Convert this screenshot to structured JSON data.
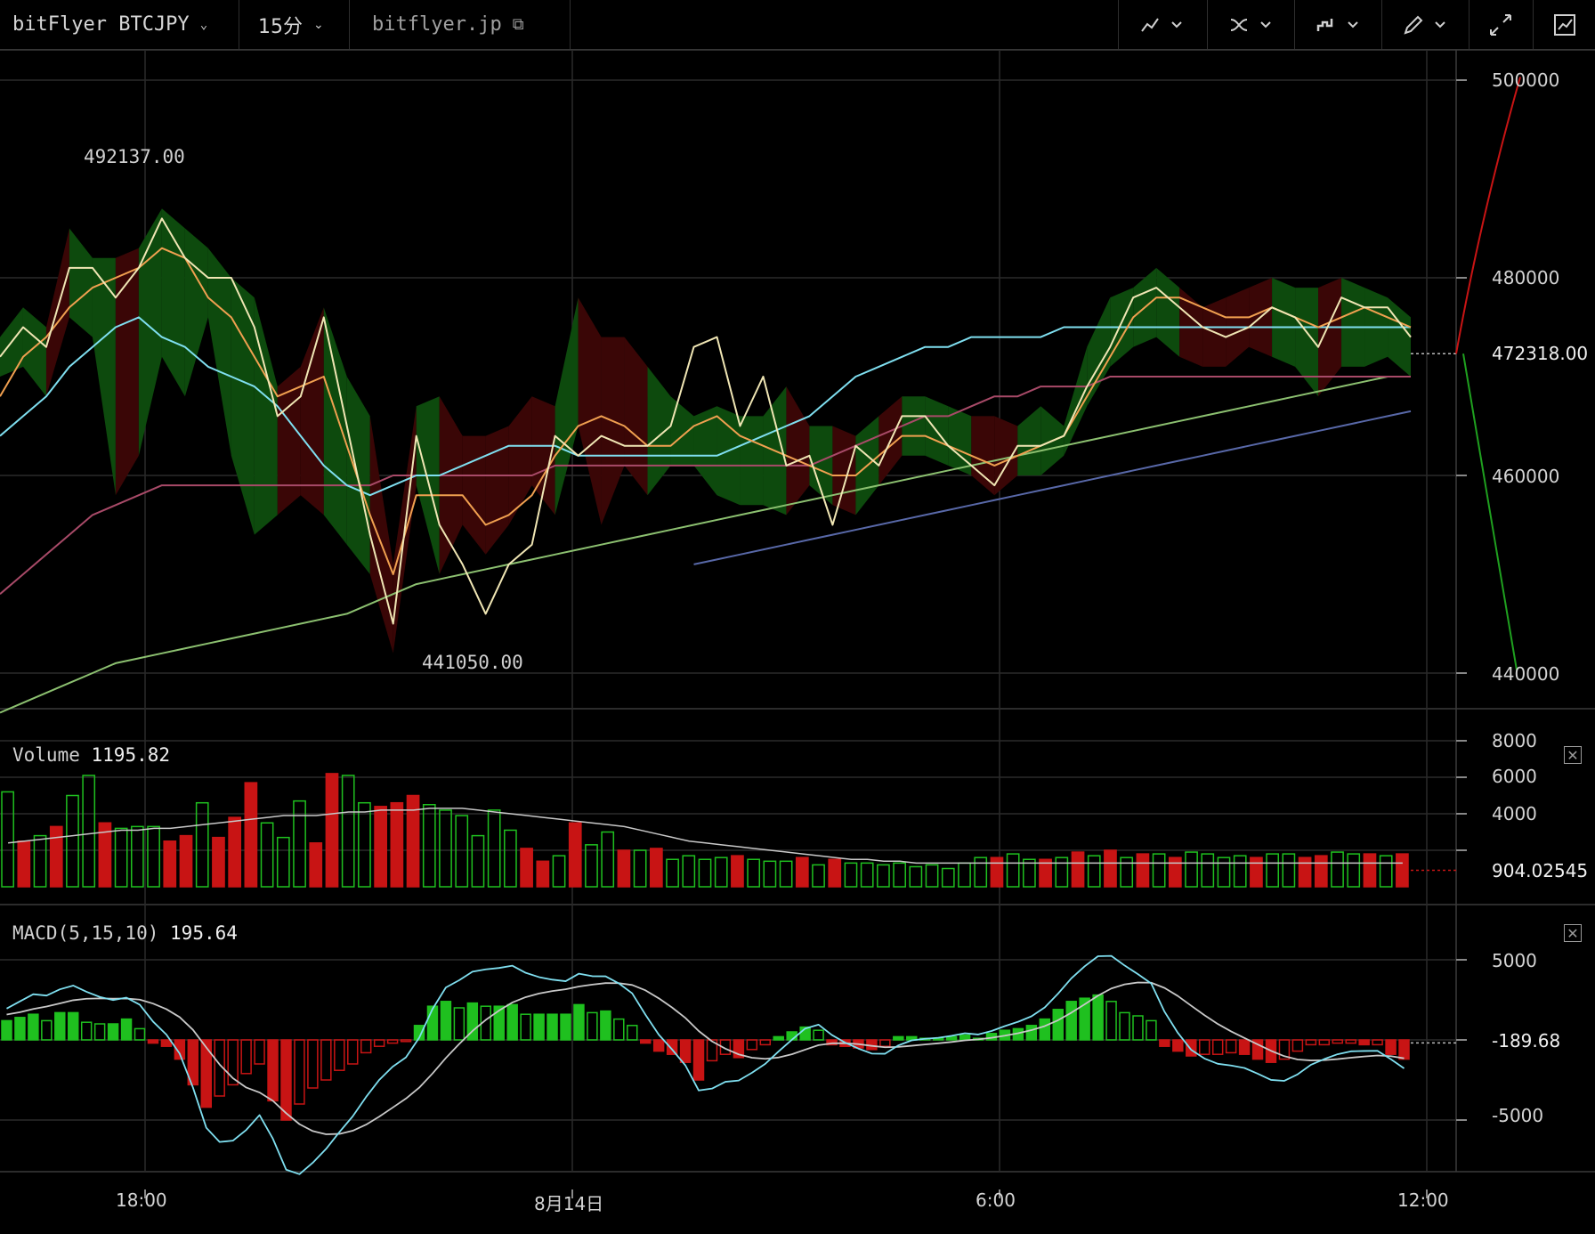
{
  "toolbar": {
    "symbol": "bitFlyer BTCJPY",
    "interval": "15分",
    "site": "bitflyer.jp",
    "icons": [
      "indicator-line-icon",
      "compare-icon",
      "chart-style-icon",
      "drawing-pencil-icon",
      "fullscreen-icon",
      "snapshot-icon"
    ]
  },
  "price_panel": {
    "high_label": "492137.00",
    "low_label": "441050.00",
    "last_price": "472318.00",
    "y_ticks": [
      "500000",
      "480000",
      "460000",
      "440000"
    ]
  },
  "volume_panel": {
    "title": "Volume",
    "value": "1195.82",
    "last_value": "904.02545",
    "y_ticks": [
      "8000",
      "6000",
      "4000"
    ]
  },
  "macd_panel": {
    "title": "MACD(5,15,10)",
    "value": "195.64",
    "last_value": "-189.68",
    "y_ticks": [
      "5000",
      "-5000"
    ]
  },
  "x_axis": {
    "ticks": [
      "18:00",
      "8月14日",
      "6:00",
      "12:00"
    ]
  },
  "colors": {
    "up": "#1fc01f",
    "down": "#c81414",
    "cloud_up": "#0d4a0d",
    "cloud_down": "#3a0606",
    "price": "#f0e6b4",
    "ma_fast": "#f0a050",
    "ma_mid": "#7fdff0",
    "ma_slow": "#a84a68",
    "ma_long": "#8cc070",
    "ma_vlong": "#5868a8"
  },
  "chart_data": {
    "type": "line",
    "price": {
      "close": [
        472000,
        475000,
        473000,
        481000,
        481000,
        478000,
        481000,
        486000,
        482000,
        480000,
        480000,
        475000,
        466000,
        468000,
        476000,
        465000,
        454000,
        445000,
        464000,
        455000,
        451000,
        446000,
        451000,
        453000,
        464000,
        462000,
        464000,
        463000,
        463000,
        465000,
        473000,
        474000,
        465000,
        470000,
        461000,
        462000,
        455000,
        463000,
        461000,
        466000,
        466000,
        463000,
        461000,
        459000,
        463000,
        463000,
        464000,
        469000,
        473000,
        478000,
        479000,
        477000,
        475000,
        474000,
        475000,
        477000,
        476000,
        473000,
        478000,
        477000,
        477000,
        474000
      ],
      "upper": [
        474000,
        477000,
        475000,
        485000,
        482000,
        482000,
        483000,
        487000,
        485000,
        483000,
        480000,
        478000,
        469000,
        471000,
        477000,
        470000,
        466000,
        451000,
        467000,
        468000,
        464000,
        464000,
        465000,
        468000,
        467000,
        478000,
        474000,
        474000,
        471000,
        468000,
        466000,
        467000,
        466000,
        466000,
        469000,
        465000,
        465000,
        464000,
        466000,
        468000,
        468000,
        467000,
        466000,
        466000,
        465000,
        467000,
        465000,
        473000,
        478000,
        479000,
        481000,
        479000,
        477000,
        478000,
        479000,
        480000,
        479000,
        479000,
        480000,
        479000,
        478000,
        476000
      ],
      "lower": [
        470000,
        471000,
        468000,
        476000,
        474000,
        458000,
        462000,
        472000,
        468000,
        476000,
        462000,
        454000,
        456000,
        458000,
        456000,
        453000,
        450000,
        442000,
        459000,
        450000,
        455000,
        452000,
        455000,
        459000,
        456000,
        465000,
        455000,
        461000,
        458000,
        461000,
        461000,
        458000,
        457000,
        457000,
        456000,
        459000,
        457000,
        456000,
        459000,
        462000,
        462000,
        461000,
        460000,
        458000,
        460000,
        460000,
        462000,
        467000,
        471000,
        473000,
        474000,
        472000,
        471000,
        471000,
        473000,
        472000,
        471000,
        468000,
        471000,
        471000,
        472000,
        470000
      ],
      "ma_fast": [
        468000,
        472000,
        474000,
        477000,
        479000,
        480000,
        481000,
        483000,
        482000,
        478000,
        476000,
        472000,
        468000,
        469000,
        470000,
        463000,
        456000,
        450000,
        458000,
        458000,
        458000,
        455000,
        456000,
        458000,
        462000,
        465000,
        466000,
        465000,
        463000,
        463000,
        465000,
        466000,
        464000,
        463000,
        462000,
        461000,
        460000,
        460000,
        462000,
        464000,
        464000,
        463000,
        462000,
        461000,
        462000,
        463000,
        464000,
        468000,
        472000,
        476000,
        478000,
        478000,
        477000,
        476000,
        476000,
        477000,
        476000,
        475000,
        476000,
        477000,
        476000,
        475000
      ],
      "ma_mid": [
        464000,
        466000,
        468000,
        471000,
        473000,
        475000,
        476000,
        474000,
        473000,
        471000,
        470000,
        469000,
        467000,
        464000,
        461000,
        459000,
        458000,
        459000,
        460000,
        460000,
        461000,
        462000,
        463000,
        463000,
        463000,
        462000,
        462000,
        462000,
        462000,
        462000,
        462000,
        462000,
        463000,
        464000,
        465000,
        466000,
        468000,
        470000,
        471000,
        472000,
        473000,
        473000,
        474000,
        474000,
        474000,
        474000,
        475000,
        475000,
        475000,
        475000,
        475000,
        475000,
        475000,
        475000,
        475000,
        475000,
        475000,
        475000,
        475000,
        475000,
        475000,
        475000
      ],
      "ma_slow": [
        448000,
        450000,
        452000,
        454000,
        456000,
        457000,
        458000,
        459000,
        459000,
        459000,
        459000,
        459000,
        459000,
        459000,
        459000,
        459000,
        459000,
        460000,
        460000,
        460000,
        460000,
        460000,
        460000,
        460000,
        461000,
        461000,
        461000,
        461000,
        461000,
        461000,
        461000,
        461000,
        461000,
        461000,
        461000,
        461000,
        462000,
        463000,
        464000,
        465000,
        466000,
        466000,
        467000,
        468000,
        468000,
        469000,
        469000,
        469000,
        470000,
        470000,
        470000,
        470000,
        470000,
        470000,
        470000,
        470000,
        470000,
        470000,
        470000,
        470000,
        470000,
        470000
      ],
      "ma_long": [
        436000,
        437000,
        438000,
        439000,
        440000,
        441000,
        441500,
        442000,
        442500,
        443000,
        443500,
        444000,
        444500,
        445000,
        445500,
        446000,
        447000,
        448000,
        449000,
        449500,
        450000,
        450500,
        451000,
        451500,
        452000,
        452500,
        453000,
        453500,
        454000,
        454500,
        455000,
        455500,
        456000,
        456500,
        457000,
        457500,
        458000,
        458500,
        459000,
        459500,
        460000,
        460500,
        461000,
        461500,
        462000,
        462500,
        463000,
        463500,
        464000,
        464500,
        465000,
        465500,
        466000,
        466500,
        467000,
        467500,
        468000,
        468500,
        469000,
        469500,
        470000,
        470000
      ],
      "ma_vlong": [
        436000,
        436500,
        437000,
        437500,
        438000,
        438500,
        439000,
        439500,
        440000,
        440500,
        441000,
        441500,
        442000,
        442500,
        443000,
        443500,
        444000,
        444500,
        445000,
        445500,
        446000,
        446500,
        447000,
        447500,
        448000,
        448500,
        449000,
        449500,
        450000,
        450500,
        451000,
        451500,
        452000,
        452500,
        453000,
        453500,
        454000,
        454500,
        455000,
        455500,
        456000,
        456500,
        457000,
        457500,
        458000,
        458500,
        459000,
        459500,
        460000,
        460500,
        461000,
        461500,
        462000,
        462500,
        463000,
        463500,
        464000,
        464500,
        465000,
        465500,
        466000,
        466500
      ]
    },
    "volume": {
      "values": [
        5200,
        2500,
        2800,
        3300,
        5000,
        6100,
        3500,
        3200,
        3300,
        3300,
        2500,
        2800,
        4600,
        2700,
        3800,
        5700,
        3500,
        2700,
        4700,
        2400,
        6200,
        6100,
        4600,
        4400,
        4600,
        5000,
        4500,
        4200,
        3900,
        2800,
        4200,
        3100,
        2100,
        1400,
        1700,
        3500,
        2300,
        3000,
        2000,
        2000,
        2100,
        1500,
        1700,
        1500,
        1600,
        1700,
        1500,
        1400,
        1400,
        1600,
        1200,
        1500,
        1300,
        1300,
        1200,
        1300,
        1100,
        1200,
        1000,
        1300,
        1600,
        1600,
        1800,
        1500,
        1500,
        1600,
        1900,
        1700,
        2000,
        1600,
        1800,
        1800,
        1600,
        1900,
        1800,
        1600,
        1700,
        1600,
        1800,
        1800,
        1600,
        1700,
        1900,
        1800,
        1800,
        1700,
        1800
      ],
      "up": [
        true,
        false,
        true,
        false,
        true,
        true,
        false,
        true,
        true,
        true,
        false,
        false,
        true,
        false,
        false,
        false,
        true,
        true,
        true,
        false,
        false,
        true,
        true,
        false,
        false,
        false,
        true,
        true,
        true,
        true,
        true,
        true,
        false,
        false,
        true,
        false,
        true,
        true,
        false,
        true,
        false,
        true,
        true,
        true,
        true,
        false,
        true,
        true,
        true,
        false,
        true,
        false,
        true,
        true,
        true,
        true,
        true,
        true,
        true,
        true,
        true,
        false,
        true,
        true,
        false,
        true,
        false,
        true,
        false,
        true,
        false,
        true,
        false,
        true,
        true,
        true,
        true,
        false,
        true,
        true,
        false,
        false,
        true,
        true,
        false,
        true,
        false
      ],
      "avg": [
        2400,
        2500,
        2600,
        2700,
        2800,
        2900,
        3000,
        3100,
        3100,
        3200,
        3200,
        3300,
        3400,
        3500,
        3600,
        3700,
        3800,
        3900,
        3900,
        3900,
        4000,
        4100,
        4100,
        4200,
        4200,
        4200,
        4300,
        4300,
        4300,
        4200,
        4100,
        4000,
        3900,
        3800,
        3700,
        3600,
        3500,
        3400,
        3300,
        3100,
        2900,
        2700,
        2500,
        2400,
        2300,
        2200,
        2100,
        2000,
        1900,
        1800,
        1700,
        1600,
        1500,
        1500,
        1400,
        1400,
        1300,
        1300,
        1300,
        1300,
        1300,
        1300,
        1300,
        1300,
        1300,
        1300,
        1300,
        1300,
        1300,
        1300,
        1300,
        1300,
        1300,
        1300,
        1300,
        1300,
        1300,
        1300,
        1300,
        1300,
        1300,
        1300,
        1300,
        1300,
        1300,
        1300,
        1300
      ],
      "ylim": [
        0,
        8500
      ]
    },
    "macd": {
      "hist": [
        1200,
        1400,
        1600,
        1200,
        1700,
        1700,
        1100,
        1000,
        1000,
        1300,
        700,
        -200,
        -400,
        -1200,
        -2800,
        -4200,
        -3500,
        -2800,
        -2100,
        -1500,
        -3800,
        -5000,
        -4000,
        -3000,
        -2500,
        -1900,
        -1500,
        -800,
        -400,
        -200,
        -100,
        900,
        2100,
        2400,
        2000,
        2300,
        2100,
        2100,
        2200,
        1600,
        1600,
        1600,
        1600,
        2200,
        1700,
        1800,
        1300,
        900,
        -200,
        -700,
        -900,
        -1400,
        -2500,
        -1300,
        -900,
        -1100,
        -600,
        -300,
        200,
        500,
        800,
        600,
        -300,
        -400,
        -500,
        -600,
        -400,
        200,
        200,
        100,
        100,
        200,
        300,
        100,
        400,
        600,
        700,
        900,
        1300,
        1900,
        2400,
        2600,
        2800,
        2400,
        1700,
        1500,
        1200,
        -400,
        -700,
        -1000,
        -900,
        -900,
        -800,
        -900,
        -1200,
        -1400,
        -1200,
        -700,
        -300,
        -300,
        -200,
        -200,
        -300,
        -300,
        -900,
        -1200
      ]
    }
  }
}
